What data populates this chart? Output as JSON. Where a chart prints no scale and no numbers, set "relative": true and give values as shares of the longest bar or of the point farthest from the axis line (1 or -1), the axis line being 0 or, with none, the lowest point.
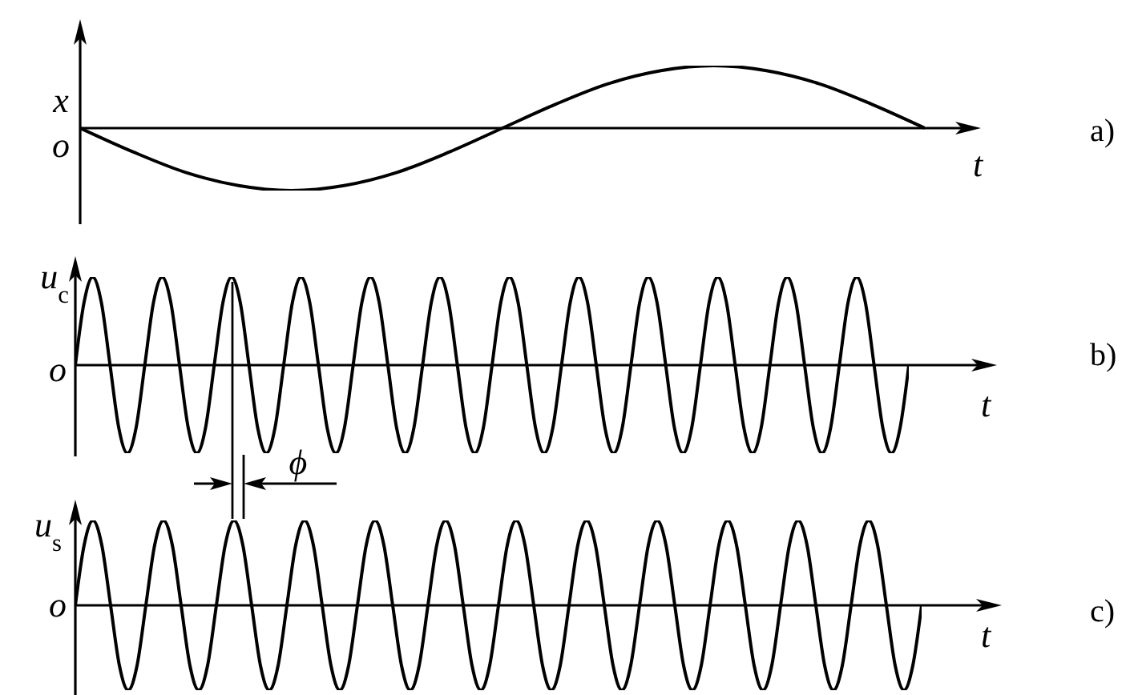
{
  "chart_data": [
    {
      "type": "line",
      "relative": true,
      "xlabel": "t",
      "ylabel": "x",
      "annotations": [
        "o",
        "a)"
      ],
      "categories": [
        null,
        null,
        null,
        null,
        null,
        null,
        null,
        null,
        null,
        null,
        null,
        null,
        null,
        null,
        null,
        null,
        null
      ],
      "series": [
        {
          "color": "#000000",
          "values": [
            0,
            -0.38,
            -0.71,
            -0.92,
            -1,
            -0.92,
            -0.71,
            -0.38,
            0,
            0.38,
            0.71,
            0.92,
            1,
            0.92,
            0.71,
            0.38,
            0
          ]
        }
      ]
    },
    {
      "type": "line",
      "relative": true,
      "xlabel": "t",
      "ylabel": "u$_{c}$",
      "annotations": [
        "o",
        "b)"
      ],
      "categories": [
        null,
        null,
        null,
        null,
        null,
        null,
        null,
        null,
        null,
        null,
        null,
        null,
        null,
        null,
        null,
        null,
        null,
        null,
        null,
        null,
        null,
        null,
        null,
        null,
        null,
        null,
        null,
        null,
        null,
        null,
        null,
        null,
        null,
        null,
        null,
        null,
        null,
        null,
        null,
        null,
        null,
        null,
        null,
        null,
        null,
        null,
        null,
        null,
        null,
        null,
        null,
        null,
        null,
        null,
        null,
        null,
        null,
        null,
        null,
        null,
        null,
        null,
        null,
        null,
        null,
        null,
        null,
        null,
        null,
        null,
        null,
        null,
        null,
        null,
        null,
        null,
        null,
        null,
        null,
        null,
        null,
        null,
        null,
        null,
        null,
        null,
        null,
        null,
        null,
        null,
        null,
        null,
        null,
        null,
        null,
        null,
        null
      ],
      "series": [
        {
          "color": "#000000",
          "values": [
            0,
            0.71,
            1,
            0.71,
            0,
            -0.71,
            -1,
            -0.71,
            0,
            0.71,
            1,
            0.71,
            0,
            -0.71,
            -1,
            -0.71,
            0,
            0.71,
            1,
            0.71,
            0,
            -0.71,
            -1,
            -0.71,
            0,
            0.71,
            1,
            0.71,
            0,
            -0.71,
            -1,
            -0.71,
            0,
            0.71,
            1,
            0.71,
            0,
            -0.71,
            -1,
            -0.71,
            0,
            0.71,
            1,
            0.71,
            0,
            -0.71,
            -1,
            -0.71,
            0,
            0.71,
            1,
            0.71,
            0,
            -0.71,
            -1,
            -0.71,
            0,
            0.71,
            1,
            0.71,
            0,
            -0.71,
            -1,
            -0.71,
            0,
            0.71,
            1,
            0.71,
            0,
            -0.71,
            -1,
            -0.71,
            0,
            0.71,
            1,
            0.71,
            0,
            -0.71,
            -1,
            -0.71,
            0,
            0.71,
            1,
            0.71,
            0,
            -0.71,
            -1,
            -0.71,
            0,
            0.71,
            1,
            0.71,
            0,
            -0.71,
            -1,
            -0.71,
            0
          ]
        }
      ]
    },
    {
      "type": "line",
      "relative": true,
      "xlabel": "t",
      "ylabel": "u$_{s}$",
      "annotations": [
        "o",
        "c)",
        "ϕ"
      ],
      "categories": [
        null,
        null,
        null,
        null,
        null,
        null,
        null,
        null,
        null,
        null,
        null,
        null,
        null,
        null,
        null,
        null,
        null,
        null,
        null,
        null,
        null,
        null,
        null,
        null,
        null,
        null,
        null,
        null,
        null,
        null,
        null,
        null,
        null,
        null,
        null,
        null,
        null,
        null,
        null,
        null,
        null,
        null,
        null,
        null,
        null,
        null,
        null,
        null,
        null,
        null,
        null,
        null,
        null,
        null,
        null,
        null,
        null,
        null,
        null,
        null,
        null,
        null,
        null,
        null,
        null,
        null,
        null,
        null,
        null,
        null,
        null,
        null,
        null,
        null,
        null,
        null,
        null,
        null,
        null,
        null,
        null,
        null,
        null,
        null,
        null,
        null,
        null,
        null,
        null,
        null,
        null,
        null,
        null,
        null,
        null,
        null,
        null
      ],
      "series": [
        {
          "color": "#000000",
          "values": [
            0,
            0.71,
            1,
            0.71,
            0,
            -0.71,
            -1,
            -0.71,
            0,
            0.71,
            1,
            0.71,
            0,
            -0.71,
            -1,
            -0.71,
            0,
            0.71,
            1,
            0.71,
            0,
            -0.71,
            -1,
            -0.71,
            0,
            0.71,
            1,
            0.71,
            0,
            -0.71,
            -1,
            -0.71,
            0,
            0.71,
            1,
            0.71,
            0,
            -0.71,
            -1,
            -0.71,
            0,
            0.71,
            1,
            0.71,
            0,
            -0.71,
            -1,
            -0.71,
            0,
            0.71,
            1,
            0.71,
            0,
            -0.71,
            -1,
            -0.71,
            0,
            0.71,
            1,
            0.71,
            0,
            -0.71,
            -1,
            -0.71,
            0,
            0.71,
            1,
            0.71,
            0,
            -0.71,
            -1,
            -0.71,
            0,
            0.71,
            1,
            0.71,
            0,
            -0.71,
            -1,
            -0.71,
            0,
            0.71,
            1,
            0.71,
            0,
            -0.71,
            -1,
            -0.71,
            0,
            0.71,
            1,
            0.71,
            0,
            -0.71,
            -1,
            -0.71,
            0
          ]
        }
      ]
    }
  ]
}
